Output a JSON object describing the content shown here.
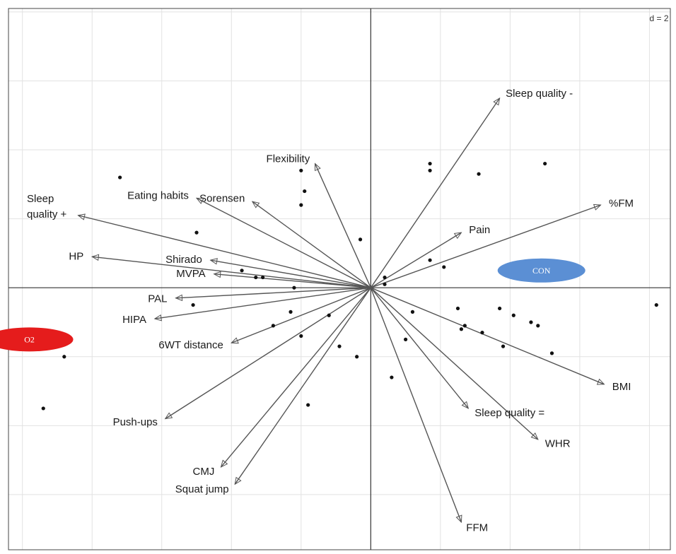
{
  "chart_data": {
    "type": "scatter",
    "scale_label": "d = 2",
    "grid": true,
    "xlim": [
      -10.4,
      8.6
    ],
    "ylim": [
      -7.6,
      8.1
    ],
    "origin": [
      0,
      0
    ],
    "variables": [
      {
        "name": "Sleep quality -",
        "x": 3.7,
        "y": 5.5
      },
      {
        "name": "Flexibility",
        "x": -1.6,
        "y": 3.6
      },
      {
        "name": "Sorensen",
        "x": -3.4,
        "y": 2.5
      },
      {
        "name": "Eating habits",
        "x": -5.0,
        "y": 2.6
      },
      {
        "name": "Sleep quality +",
        "x": -8.4,
        "y": 2.1
      },
      {
        "name": "%FM",
        "x": 6.6,
        "y": 2.4
      },
      {
        "name": "Pain",
        "x": 2.6,
        "y": 1.6
      },
      {
        "name": "Shirado",
        "x": -4.6,
        "y": 0.8
      },
      {
        "name": "HP",
        "x": -8.0,
        "y": 0.9
      },
      {
        "name": "MVPA",
        "x": -4.5,
        "y": 0.4
      },
      {
        "name": "PAL",
        "x": -5.6,
        "y": -0.3
      },
      {
        "name": "HIPA",
        "x": -6.2,
        "y": -0.9
      },
      {
        "name": "6WT distance",
        "x": -4.0,
        "y": -1.6
      },
      {
        "name": "Push-ups",
        "x": -5.9,
        "y": -3.8
      },
      {
        "name": "CMJ",
        "x": -4.3,
        "y": -5.2
      },
      {
        "name": "Squat jump",
        "x": -3.9,
        "y": -5.7
      },
      {
        "name": "FFM",
        "x": 2.6,
        "y": -6.8
      },
      {
        "name": "WHR",
        "x": 4.8,
        "y": -4.4
      },
      {
        "name": "Sleep quality =",
        "x": 2.8,
        "y": -3.5
      },
      {
        "name": "BMI",
        "x": 6.7,
        "y": -2.8
      }
    ],
    "groups": [
      {
        "name": "O2",
        "x": -9.8,
        "y": -1.5,
        "color": "#e51c1c"
      },
      {
        "name": "CON",
        "x": 4.9,
        "y": 0.5,
        "color": "#5b8fd4"
      }
    ],
    "points": [
      [
        -7.2,
        3.2
      ],
      [
        -5.0,
        1.6
      ],
      [
        -2.0,
        3.4
      ],
      [
        -1.9,
        2.8
      ],
      [
        -2.0,
        2.4
      ],
      [
        -0.3,
        1.4
      ],
      [
        -3.7,
        0.5
      ],
      [
        -3.3,
        0.3
      ],
      [
        -3.1,
        0.3
      ],
      [
        -2.2,
        0.0
      ],
      [
        -5.1,
        -0.5
      ],
      [
        -2.3,
        -0.7
      ],
      [
        -2.8,
        -1.1
      ],
      [
        -1.2,
        -0.8
      ],
      [
        -2.0,
        -1.4
      ],
      [
        -0.9,
        -1.7
      ],
      [
        -0.4,
        -2.0
      ],
      [
        -1.8,
        -3.4
      ],
      [
        -8.8,
        -2.0
      ],
      [
        -9.4,
        -3.5
      ],
      [
        1.7,
        3.6
      ],
      [
        1.7,
        3.4
      ],
      [
        3.1,
        3.3
      ],
      [
        5.0,
        3.6
      ],
      [
        1.7,
        0.8
      ],
      [
        2.1,
        0.6
      ],
      [
        0.4,
        0.3
      ],
      [
        0.4,
        0.1
      ],
      [
        1.2,
        -0.7
      ],
      [
        2.5,
        -0.6
      ],
      [
        3.7,
        -0.6
      ],
      [
        4.1,
        -0.8
      ],
      [
        2.7,
        -1.1
      ],
      [
        2.6,
        -1.2
      ],
      [
        3.2,
        -1.3
      ],
      [
        4.6,
        -1.0
      ],
      [
        4.8,
        -1.1
      ],
      [
        3.8,
        -1.7
      ],
      [
        5.2,
        -1.9
      ],
      [
        8.2,
        -0.5
      ],
      [
        0.6,
        -2.6
      ],
      [
        1.0,
        -1.5
      ]
    ]
  }
}
